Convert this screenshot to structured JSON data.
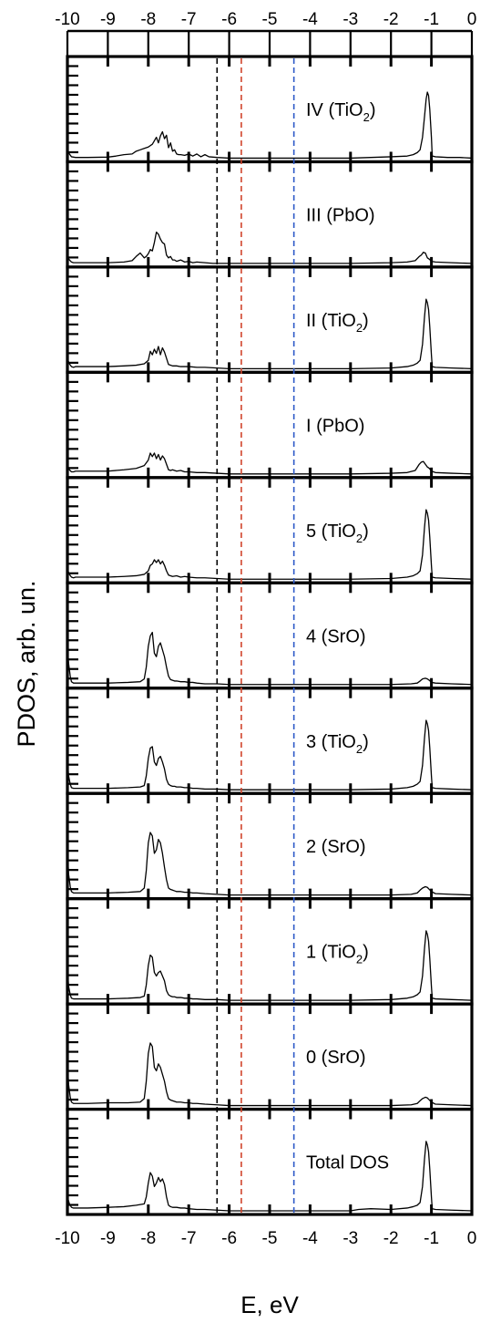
{
  "chart_data": {
    "type": "line",
    "xlabel": "E, eV",
    "ylabel": "PDOS, arb. un.",
    "xlim": [
      -10,
      0
    ],
    "xticks": [
      "-10",
      "-9",
      "-8",
      "-7",
      "-6",
      "-5",
      "-4",
      "-3",
      "-2",
      "-1",
      "0"
    ],
    "reference_lines": [
      {
        "x": -6.3,
        "color": "#000000"
      },
      {
        "x": -5.7,
        "color": "#d0442c"
      },
      {
        "x": -4.4,
        "color": "#2d59c8"
      }
    ],
    "line_color": "#000000",
    "panels": [
      {
        "label": "IV (TiO",
        "sub": "2",
        "suffix": ")",
        "x": [
          -10,
          -9.95,
          -9.9,
          -9.85,
          -9.8,
          -9.5,
          -9,
          -8.8,
          -8.6,
          -8.4,
          -8.3,
          -8.2,
          -8.1,
          -8,
          -7.9,
          -7.85,
          -7.8,
          -7.75,
          -7.7,
          -7.65,
          -7.6,
          -7.55,
          -7.5,
          -7.45,
          -7.4,
          -7.35,
          -7.3,
          -7.25,
          -7.2,
          -7.1,
          -7,
          -6.9,
          -6.8,
          -6.7,
          -6.6,
          -6.5,
          -6.3,
          -6,
          -5,
          -4,
          -3,
          -2.5,
          -2,
          -1.6,
          -1.45,
          -1.35,
          -1.28,
          -1.22,
          -1.17,
          -1.13,
          -1.1,
          -1.07,
          -1.04,
          -1.0,
          -0.98,
          -0.9,
          -0.6,
          -0.3,
          0
        ],
        "y": [
          0.12,
          0.06,
          0.02,
          0.015,
          0.01,
          0.01,
          0.015,
          0.03,
          0.05,
          0.06,
          0.1,
          0.12,
          0.14,
          0.16,
          0.2,
          0.25,
          0.3,
          0.22,
          0.32,
          0.38,
          0.28,
          0.33,
          0.15,
          0.22,
          0.1,
          0.12,
          0.06,
          0.05,
          0.05,
          0.04,
          0.06,
          0.03,
          0.06,
          0.02,
          0.05,
          0.02,
          0.01,
          0,
          0,
          0,
          0,
          0.01,
          0.02,
          0.03,
          0.05,
          0.08,
          0.12,
          0.3,
          0.6,
          0.85,
          0.95,
          0.9,
          0.7,
          0.3,
          0.03,
          0.02,
          0.01,
          0.01,
          0
        ]
      },
      {
        "label": "III (PbO)",
        "x": [
          -10,
          -9.95,
          -9.9,
          -9.85,
          -9.8,
          -9,
          -8.6,
          -8.4,
          -8.3,
          -8.2,
          -8.1,
          -8.05,
          -8,
          -7.95,
          -7.9,
          -7.85,
          -7.8,
          -7.75,
          -7.7,
          -7.65,
          -7.6,
          -7.55,
          -7.5,
          -7.45,
          -7.4,
          -7.35,
          -7.3,
          -7.2,
          -7.1,
          -7,
          -6.9,
          -6.8,
          -6.6,
          -6.4,
          -6,
          -5,
          -4,
          -3,
          -2,
          -1.6,
          -1.4,
          -1.3,
          -1.25,
          -1.2,
          -1.15,
          -1.1,
          -1.05,
          -1.0,
          -0.9,
          -0.5,
          0
        ],
        "y": [
          0.1,
          0.05,
          0.02,
          0.01,
          0.01,
          0.01,
          0.02,
          0.04,
          0.1,
          0.15,
          0.08,
          0.1,
          0.14,
          0.2,
          0.18,
          0.3,
          0.45,
          0.42,
          0.35,
          0.3,
          0.28,
          0.12,
          0.08,
          0.1,
          0.05,
          0.05,
          0.03,
          0.05,
          0.02,
          0.03,
          0.01,
          0.02,
          0.01,
          0,
          0,
          0,
          0,
          0,
          0.01,
          0.02,
          0.04,
          0.1,
          0.12,
          0.16,
          0.15,
          0.08,
          0.06,
          0.03,
          0.02,
          0.01,
          0
        ]
      },
      {
        "label": "II (TiO",
        "sub": "2",
        "suffix": ")",
        "x": [
          -10,
          -9.95,
          -9.9,
          -9.85,
          -9.8,
          -9,
          -8.6,
          -8.3,
          -8.1,
          -8,
          -7.95,
          -7.9,
          -7.85,
          -7.8,
          -7.75,
          -7.7,
          -7.65,
          -7.6,
          -7.55,
          -7.5,
          -7.45,
          -7.4,
          -7.3,
          -7.2,
          -7.1,
          -7,
          -6.8,
          -6.6,
          -6.3,
          -6,
          -5,
          -4,
          -3,
          -2,
          -1.6,
          -1.45,
          -1.35,
          -1.28,
          -1.22,
          -1.17,
          -1.13,
          -1.1,
          -1.07,
          -1.04,
          -1.0,
          -0.98,
          -0.9,
          -0.5,
          0
        ],
        "y": [
          0.14,
          0.07,
          0.03,
          0.02,
          0.03,
          0.03,
          0.04,
          0.05,
          0.07,
          0.12,
          0.25,
          0.2,
          0.28,
          0.22,
          0.32,
          0.2,
          0.3,
          0.24,
          0.15,
          0.06,
          0.05,
          0.04,
          0.04,
          0.03,
          0.03,
          0.03,
          0.02,
          0.02,
          0.01,
          0,
          0,
          0,
          0,
          0.01,
          0.03,
          0.05,
          0.08,
          0.12,
          0.35,
          0.75,
          1.0,
          0.95,
          0.85,
          0.6,
          0.2,
          0.03,
          0.02,
          0.01,
          0
        ]
      },
      {
        "label": "I (PbO)",
        "x": [
          -10,
          -9.95,
          -9.9,
          -9.85,
          -9.8,
          -9,
          -8.6,
          -8.3,
          -8.1,
          -8,
          -7.95,
          -7.9,
          -7.85,
          -7.8,
          -7.75,
          -7.7,
          -7.65,
          -7.6,
          -7.55,
          -7.5,
          -7.45,
          -7.4,
          -7.3,
          -7.2,
          -7.1,
          -7,
          -6.8,
          -6.6,
          -6.3,
          -6,
          -5,
          -4,
          -3,
          -2,
          -1.6,
          -1.4,
          -1.3,
          -1.25,
          -1.2,
          -1.15,
          -1.1,
          -1.05,
          -1.0,
          -0.9,
          -0.5,
          0
        ],
        "y": [
          0.12,
          0.06,
          0.03,
          0.03,
          0.04,
          0.04,
          0.06,
          0.08,
          0.12,
          0.2,
          0.3,
          0.25,
          0.3,
          0.22,
          0.28,
          0.2,
          0.26,
          0.22,
          0.14,
          0.06,
          0.05,
          0.06,
          0.04,
          0.05,
          0.03,
          0.03,
          0.02,
          0.02,
          0.01,
          0,
          0,
          0,
          0,
          0.01,
          0.02,
          0.05,
          0.14,
          0.17,
          0.18,
          0.14,
          0.1,
          0.08,
          0.04,
          0.02,
          0.01,
          0
        ]
      },
      {
        "label": "5 (TiO",
        "sub": "2",
        "suffix": ")",
        "x": [
          -10,
          -9.95,
          -9.9,
          -9.85,
          -9.8,
          -9,
          -8.6,
          -8.3,
          -8.1,
          -8,
          -7.95,
          -7.9,
          -7.85,
          -7.8,
          -7.75,
          -7.7,
          -7.65,
          -7.6,
          -7.55,
          -7.5,
          -7.45,
          -7.4,
          -7.3,
          -7.2,
          -7.1,
          -7,
          -6.8,
          -6.6,
          -6.3,
          -6,
          -5,
          -4,
          -3,
          -2,
          -1.6,
          -1.45,
          -1.35,
          -1.28,
          -1.22,
          -1.17,
          -1.13,
          -1.1,
          -1.07,
          -1.04,
          -1.0,
          -0.98,
          -0.9,
          -0.5,
          0
        ],
        "y": [
          0.14,
          0.07,
          0.03,
          0.02,
          0.03,
          0.03,
          0.04,
          0.05,
          0.07,
          0.12,
          0.2,
          0.22,
          0.28,
          0.24,
          0.28,
          0.22,
          0.26,
          0.2,
          0.12,
          0.06,
          0.05,
          0.04,
          0.05,
          0.03,
          0.04,
          0.03,
          0.02,
          0.02,
          0.01,
          0,
          0,
          0,
          0,
          0.01,
          0.03,
          0.05,
          0.08,
          0.12,
          0.35,
          0.75,
          1.0,
          0.95,
          0.85,
          0.6,
          0.2,
          0.03,
          0.02,
          0.01,
          0
        ]
      },
      {
        "label": "4 (SrO)",
        "x": [
          -10,
          -9.97,
          -9.93,
          -9.9,
          -9.85,
          -9.8,
          -9.5,
          -9,
          -8.5,
          -8.2,
          -8.1,
          -8.05,
          -8,
          -7.95,
          -7.9,
          -7.85,
          -7.8,
          -7.75,
          -7.7,
          -7.65,
          -7.6,
          -7.55,
          -7.5,
          -7.45,
          -7.4,
          -7.35,
          -7.3,
          -7.2,
          -7.1,
          -7,
          -6.9,
          -6.8,
          -6.6,
          -6.3,
          -6,
          -5,
          -4,
          -3,
          -2,
          -1.5,
          -1.35,
          -1.28,
          -1.22,
          -1.15,
          -1.1,
          -1.05,
          -1.0,
          -0.9,
          -0.5,
          0
        ],
        "y": [
          0.55,
          0.3,
          0.12,
          0.04,
          0.02,
          0.02,
          0.02,
          0.02,
          0.03,
          0.04,
          0.08,
          0.25,
          0.55,
          0.7,
          0.75,
          0.45,
          0.4,
          0.55,
          0.6,
          0.5,
          0.4,
          0.25,
          0.12,
          0.07,
          0.06,
          0.05,
          0.05,
          0.04,
          0.04,
          0.03,
          0.03,
          0.02,
          0.01,
          0.01,
          0,
          0,
          0,
          0,
          0,
          0.01,
          0.02,
          0.05,
          0.08,
          0.09,
          0.08,
          0.06,
          0.03,
          0.02,
          0.01,
          0
        ]
      },
      {
        "label": "3 (TiO",
        "sub": "2",
        "suffix": ")",
        "x": [
          -10,
          -9.97,
          -9.93,
          -9.9,
          -9.85,
          -9.8,
          -9.5,
          -9,
          -8.5,
          -8.2,
          -8.1,
          -8.05,
          -8,
          -7.95,
          -7.9,
          -7.85,
          -7.8,
          -7.75,
          -7.7,
          -7.65,
          -7.6,
          -7.55,
          -7.5,
          -7.45,
          -7.4,
          -7.35,
          -7.3,
          -7.2,
          -7.1,
          -7,
          -6.9,
          -6.8,
          -6.6,
          -6.3,
          -6,
          -5,
          -4,
          -3,
          -2,
          -1.6,
          -1.45,
          -1.35,
          -1.28,
          -1.22,
          -1.17,
          -1.13,
          -1.1,
          -1.07,
          -1.04,
          -1.0,
          -0.98,
          -0.9,
          -0.5,
          0
        ],
        "y": [
          0.4,
          0.2,
          0.08,
          0.03,
          0.02,
          0.02,
          0.02,
          0.02,
          0.03,
          0.04,
          0.06,
          0.2,
          0.45,
          0.6,
          0.62,
          0.4,
          0.35,
          0.45,
          0.48,
          0.4,
          0.3,
          0.15,
          0.08,
          0.06,
          0.05,
          0.05,
          0.04,
          0.04,
          0.03,
          0.03,
          0.02,
          0.02,
          0.01,
          0.01,
          0,
          0,
          0,
          0,
          0.01,
          0.03,
          0.05,
          0.08,
          0.12,
          0.35,
          0.75,
          1.0,
          0.95,
          0.85,
          0.6,
          0.2,
          0.03,
          0.02,
          0.01,
          0
        ]
      },
      {
        "label": "2 (SrO)",
        "x": [
          -10,
          -9.97,
          -9.93,
          -9.9,
          -9.85,
          -9.8,
          -9.5,
          -9,
          -8.5,
          -8.2,
          -8.1,
          -8.05,
          -8,
          -7.95,
          -7.9,
          -7.85,
          -7.8,
          -7.75,
          -7.7,
          -7.65,
          -7.6,
          -7.55,
          -7.5,
          -7.45,
          -7.4,
          -7.35,
          -7.3,
          -7.2,
          -7.1,
          -7,
          -6.9,
          -6.8,
          -6.6,
          -6.3,
          -6,
          -5,
          -4,
          -3,
          -2,
          -1.5,
          -1.35,
          -1.28,
          -1.22,
          -1.15,
          -1.1,
          -1.05,
          -1.0,
          -0.9,
          -0.5,
          0
        ],
        "y": [
          0.6,
          0.3,
          0.12,
          0.05,
          0.03,
          0.03,
          0.03,
          0.03,
          0.04,
          0.05,
          0.1,
          0.35,
          0.75,
          0.9,
          0.85,
          0.6,
          0.65,
          0.8,
          0.75,
          0.6,
          0.4,
          0.22,
          0.1,
          0.08,
          0.07,
          0.06,
          0.05,
          0.05,
          0.04,
          0.04,
          0.03,
          0.03,
          0.02,
          0.01,
          0,
          0,
          0,
          0,
          0,
          0.01,
          0.03,
          0.07,
          0.1,
          0.12,
          0.11,
          0.08,
          0.05,
          0.02,
          0.01,
          0
        ]
      },
      {
        "label": "1 (TiO",
        "sub": "2",
        "suffix": ")",
        "x": [
          -10,
          -9.97,
          -9.93,
          -9.9,
          -9.85,
          -9.8,
          -9.5,
          -9,
          -8.5,
          -8.2,
          -8.1,
          -8.05,
          -8,
          -7.95,
          -7.9,
          -7.85,
          -7.8,
          -7.75,
          -7.7,
          -7.65,
          -7.6,
          -7.55,
          -7.5,
          -7.45,
          -7.4,
          -7.35,
          -7.3,
          -7.2,
          -7.1,
          -7,
          -6.9,
          -6.8,
          -6.6,
          -6.3,
          -6,
          -5,
          -4,
          -3,
          -2,
          -1.6,
          -1.45,
          -1.35,
          -1.28,
          -1.22,
          -1.17,
          -1.13,
          -1.1,
          -1.07,
          -1.04,
          -1.0,
          -0.98,
          -0.9,
          -0.5,
          0
        ],
        "y": [
          0.42,
          0.2,
          0.08,
          0.03,
          0.02,
          0.02,
          0.02,
          0.02,
          0.03,
          0.04,
          0.06,
          0.22,
          0.5,
          0.65,
          0.62,
          0.4,
          0.35,
          0.4,
          0.42,
          0.35,
          0.28,
          0.14,
          0.08,
          0.06,
          0.05,
          0.05,
          0.04,
          0.04,
          0.03,
          0.03,
          0.02,
          0.02,
          0.01,
          0.01,
          0,
          0,
          0,
          0,
          0.01,
          0.03,
          0.05,
          0.08,
          0.12,
          0.35,
          0.75,
          1.0,
          0.95,
          0.85,
          0.6,
          0.2,
          0.03,
          0.02,
          0.01,
          0
        ]
      },
      {
        "label": "0 (SrO)",
        "x": [
          -10,
          -9.97,
          -9.93,
          -9.9,
          -9.85,
          -9.8,
          -9.5,
          -9,
          -8.5,
          -8.2,
          -8.1,
          -8.05,
          -8,
          -7.95,
          -7.9,
          -7.85,
          -7.8,
          -7.75,
          -7.7,
          -7.65,
          -7.6,
          -7.55,
          -7.5,
          -7.45,
          -7.4,
          -7.35,
          -7.3,
          -7.2,
          -7.1,
          -7,
          -6.9,
          -6.8,
          -6.6,
          -6.3,
          -6,
          -5,
          -4,
          -3,
          -2,
          -1.5,
          -1.35,
          -1.28,
          -1.22,
          -1.15,
          -1.1,
          -1.05,
          -1.0,
          -0.9,
          -0.5,
          0
        ],
        "y": [
          0.6,
          0.3,
          0.12,
          0.05,
          0.03,
          0.03,
          0.03,
          0.04,
          0.04,
          0.05,
          0.1,
          0.35,
          0.75,
          0.9,
          0.85,
          0.55,
          0.5,
          0.6,
          0.55,
          0.45,
          0.35,
          0.2,
          0.1,
          0.08,
          0.07,
          0.06,
          0.05,
          0.05,
          0.04,
          0.04,
          0.03,
          0.03,
          0.02,
          0.01,
          0,
          0,
          0,
          0,
          0,
          0.01,
          0.03,
          0.07,
          0.1,
          0.12,
          0.11,
          0.08,
          0.05,
          0.02,
          0.01,
          0
        ]
      },
      {
        "label": "Total DOS",
        "x": [
          -10,
          -9.95,
          -9.9,
          -9.85,
          -9.8,
          -9.5,
          -9,
          -8.6,
          -8.3,
          -8.1,
          -8.05,
          -8,
          -7.95,
          -7.9,
          -7.85,
          -7.8,
          -7.75,
          -7.7,
          -7.65,
          -7.6,
          -7.55,
          -7.5,
          -7.45,
          -7.4,
          -7.3,
          -7.2,
          -7.1,
          -7,
          -6.8,
          -6.6,
          -6.3,
          -6,
          -5,
          -4,
          -3,
          -2.8,
          -2.5,
          -2,
          -1.6,
          -1.45,
          -1.35,
          -1.28,
          -1.22,
          -1.17,
          -1.13,
          -1.1,
          -1.07,
          -1.04,
          -1.0,
          -0.98,
          -0.9,
          -0.5,
          0
        ],
        "y": [
          0.2,
          0.1,
          0.05,
          0.04,
          0.04,
          0.04,
          0.05,
          0.06,
          0.08,
          0.1,
          0.2,
          0.4,
          0.55,
          0.5,
          0.35,
          0.4,
          0.48,
          0.42,
          0.46,
          0.38,
          0.2,
          0.08,
          0.06,
          0.05,
          0.05,
          0.04,
          0.04,
          0.03,
          0.02,
          0.02,
          0.01,
          0,
          0,
          0,
          0,
          0.02,
          0.03,
          0.02,
          0.04,
          0.06,
          0.08,
          0.12,
          0.35,
          0.75,
          1.0,
          0.95,
          0.85,
          0.6,
          0.2,
          0.03,
          0.02,
          0.01,
          0
        ]
      }
    ]
  }
}
